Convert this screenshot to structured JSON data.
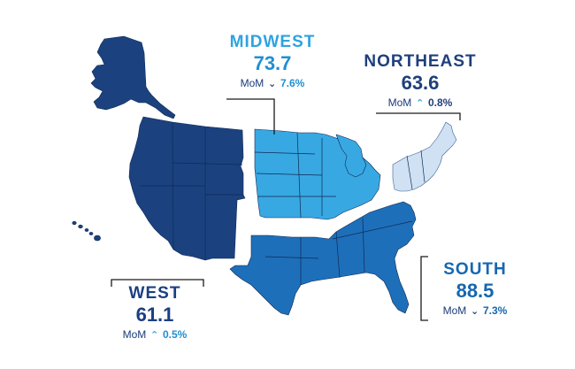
{
  "colors": {
    "west": "#1b427f",
    "midwest": "#38a8e2",
    "northeast": "#cfe1f2",
    "south": "#1e6fb9",
    "border": "#0f2a55",
    "leader": "#1a1a1a"
  },
  "regions": {
    "midwest": {
      "name": "MIDWEST",
      "value": "73.7",
      "mom_label": "MoM",
      "direction": "down",
      "direction_icon": "chevron-down-icon",
      "change": "7.6%"
    },
    "northeast": {
      "name": "NORTHEAST",
      "value": "63.6",
      "mom_label": "MoM",
      "direction": "up",
      "direction_icon": "chevron-up-icon",
      "change": "0.8%"
    },
    "west": {
      "name": "WEST",
      "value": "61.1",
      "mom_label": "MoM",
      "direction": "up",
      "direction_icon": "chevron-up-icon",
      "change": "0.5%"
    },
    "south": {
      "name": "SOUTH",
      "value": "88.5",
      "mom_label": "MoM",
      "direction": "down",
      "direction_icon": "chevron-down-icon",
      "change": "7.3%"
    }
  }
}
